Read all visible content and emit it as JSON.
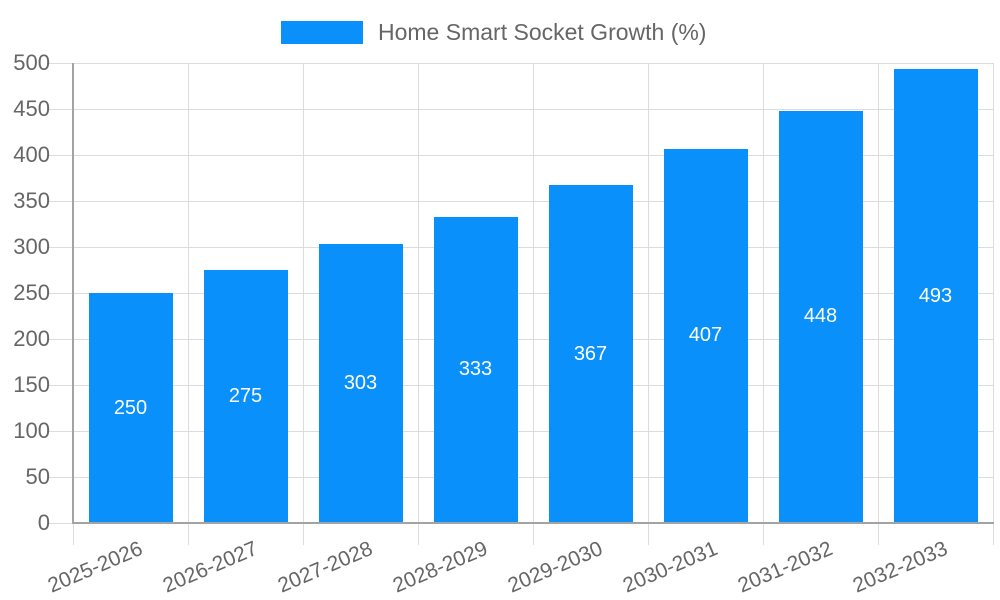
{
  "legend": {
    "label": "Home Smart Socket Growth (%)"
  },
  "chart_data": {
    "type": "bar",
    "title": "Home Smart Socket Growth (%)",
    "categories": [
      "2025-2026",
      "2026-2027",
      "2027-2028",
      "2028-2029",
      "2029-2030",
      "2030-2031",
      "2031-2032",
      "2032-2033"
    ],
    "values": [
      250,
      275,
      303,
      333,
      367,
      407,
      448,
      493
    ],
    "series_name": "Home Smart Socket Growth (%)",
    "xlabel": "",
    "ylabel": "",
    "ylim": [
      0,
      500
    ],
    "yticks": [
      0,
      50,
      100,
      150,
      200,
      250,
      300,
      350,
      400,
      450,
      500
    ],
    "grid": true,
    "legend_position": "top-center",
    "x_label_rotation_deg": -23,
    "value_labels": "inside-center",
    "colors": {
      "bar": "#0a90fa",
      "value_text": "#ffffff",
      "axis_text": "#666666",
      "grid": "#dcdcdc",
      "axis_line": "#a3a3a3",
      "background": "#ffffff"
    }
  }
}
